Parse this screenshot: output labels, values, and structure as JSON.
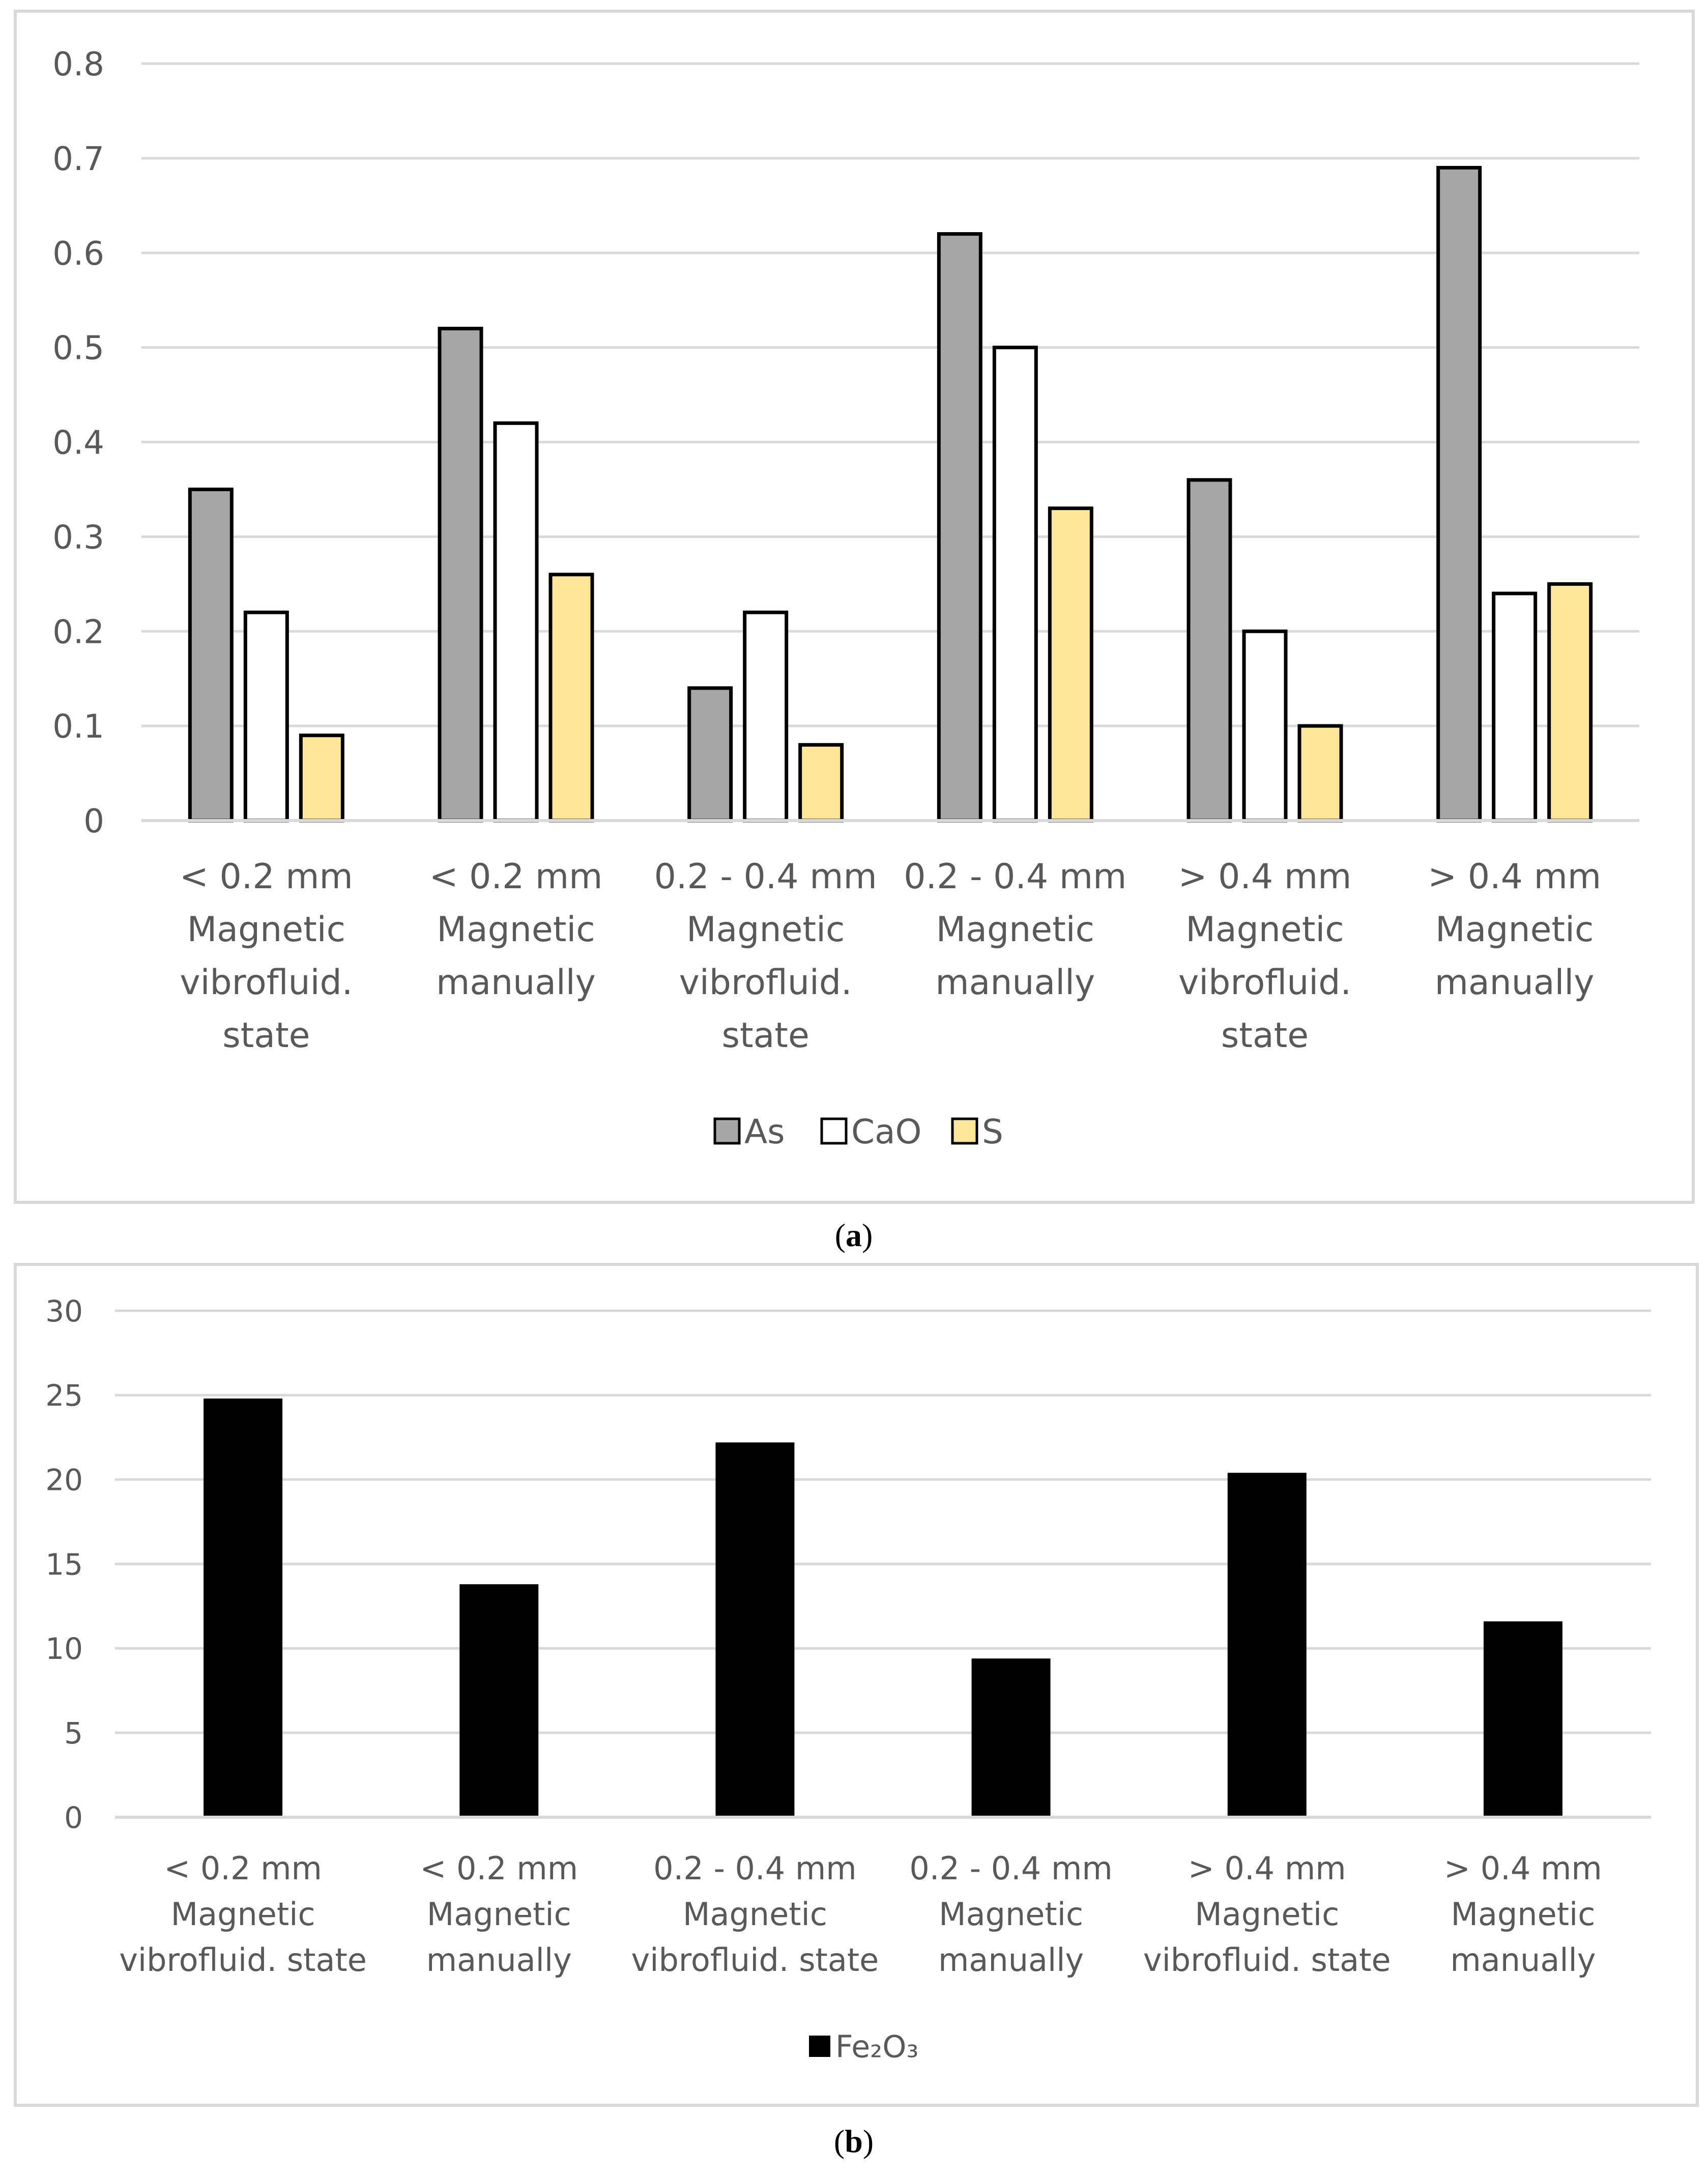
{
  "colors": {
    "As": "#a6a6a6",
    "CaO": "#ffffff",
    "S": "#ffe699",
    "Fe2O3": "#000000",
    "grid": "#d9d9d9",
    "text": "#595959",
    "frame": "#d9d9d9"
  },
  "chart_data": [
    {
      "type": "bar",
      "panel_label": "a",
      "title": "",
      "xlabel": "",
      "ylabel": "",
      "categories": [
        [
          "< 0.2 mm",
          "Magnetic",
          "vibrofluid.",
          "state"
        ],
        [
          "< 0.2 mm",
          "Magnetic",
          "manually"
        ],
        [
          "0.2 - 0.4 mm",
          "Magnetic",
          "vibrofluid.",
          "state"
        ],
        [
          "0.2 - 0.4 mm",
          "Magnetic",
          "manually"
        ],
        [
          "> 0.4 mm",
          "Magnetic",
          "vibrofluid.",
          "state"
        ],
        [
          "> 0.4 mm",
          "Magnetic",
          "manually"
        ]
      ],
      "ylim": [
        0,
        0.8
      ],
      "yticks": [
        "0",
        "0.1",
        "0.2",
        "0.3",
        "0.4",
        "0.5",
        "0.6",
        "0.7",
        "0.8"
      ],
      "grid": true,
      "legend_position": "bottom-center",
      "series": [
        {
          "name": "As",
          "color_key": "As",
          "values": [
            0.35,
            0.52,
            0.14,
            0.62,
            0.36,
            0.69
          ]
        },
        {
          "name": "CaO",
          "color_key": "CaO",
          "values": [
            0.22,
            0.42,
            0.22,
            0.5,
            0.2,
            0.24
          ]
        },
        {
          "name": "S",
          "color_key": "S",
          "values": [
            0.09,
            0.26,
            0.08,
            0.33,
            0.1,
            0.25
          ]
        }
      ]
    },
    {
      "type": "bar",
      "panel_label": "b",
      "title": "",
      "xlabel": "",
      "ylabel": "",
      "categories": [
        [
          "< 0.2 mm",
          "Magnetic",
          "vibrofluid. state"
        ],
        [
          "< 0.2 mm",
          "Magnetic",
          "manually"
        ],
        [
          "0.2 - 0.4 mm",
          "Magnetic",
          "vibrofluid. state"
        ],
        [
          "0.2 - 0.4 mm",
          "Magnetic",
          "manually"
        ],
        [
          "> 0.4 mm",
          "Magnetic",
          "vibrofluid. state"
        ],
        [
          "> 0.4 mm",
          "Magnetic",
          "manually"
        ]
      ],
      "ylim": [
        0,
        30
      ],
      "yticks": [
        "0",
        "5",
        "10",
        "15",
        "20",
        "25",
        "30"
      ],
      "grid": true,
      "legend_position": "bottom-center",
      "series": [
        {
          "name": "Fe₂O₃",
          "color_key": "Fe2O3",
          "values": [
            24.8,
            13.8,
            22.2,
            9.4,
            20.4,
            11.6
          ]
        }
      ]
    }
  ]
}
